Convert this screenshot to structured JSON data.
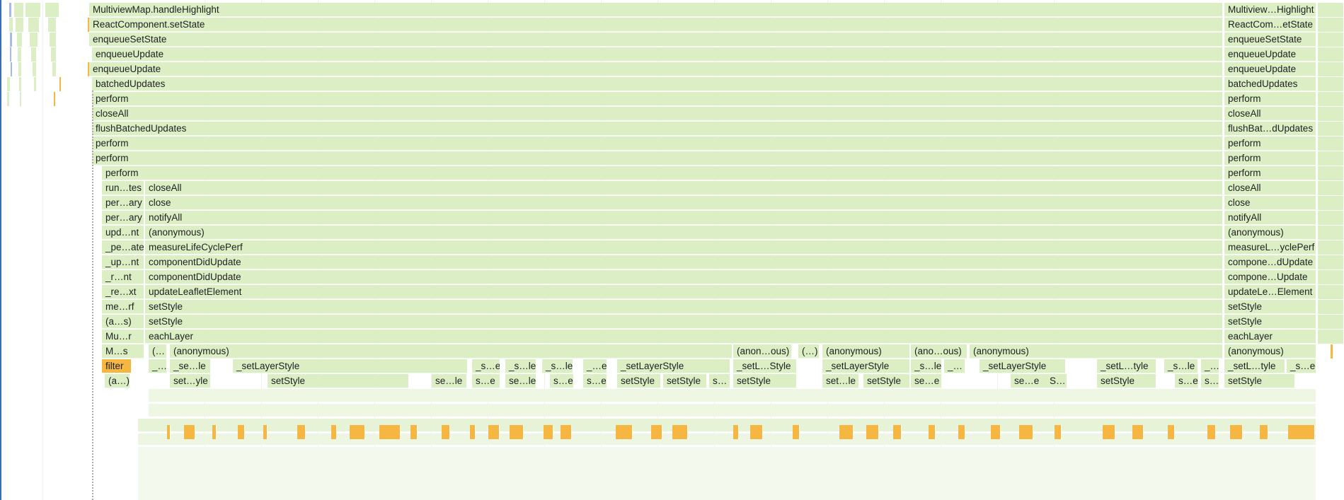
{
  "flame_chart": {
    "frames_main": [
      "MultiviewMap.handleHighlight",
      "ReactComponent.setState",
      "enqueueSetState",
      "enqueueUpdate",
      "enqueueUpdate",
      "batchedUpdates",
      "perform",
      "closeAll",
      "flushBatchedUpdates",
      "perform",
      "perform",
      "perform",
      "closeAll",
      "close",
      "notifyAll",
      "(anonymous)",
      "measureLifeCyclePerf",
      "componentDidUpdate",
      "componentDidUpdate",
      "updateLeafletElement",
      "setStyle",
      "setStyle",
      "eachLayer"
    ],
    "frames_left_column": [
      "run…tes",
      "per…ary",
      "per…ary",
      "upd…nt",
      "_pe…ate",
      "_up…nt",
      "_r…nt",
      "_re…xt",
      "me…rf",
      "(a…s)",
      "Mu…r",
      "M…s",
      "filter",
      "(a…)"
    ],
    "frames_right_column": [
      "Multiview…Highlight",
      "ReactCom…etState",
      "enqueueSetState",
      "enqueueUpdate",
      "enqueueUpdate",
      "batchedUpdates",
      "perform",
      "closeAll",
      "flushBat…dUpdates",
      "perform",
      "perform",
      "perform",
      "closeAll",
      "close",
      "notifyAll",
      "(anonymous)",
      "measureL…yclePerf",
      "compone…dUpdate",
      "compone…Update",
      "updateLe…Element",
      "setStyle",
      "setStyle",
      "eachLayer",
      "(anonymous)",
      "_setL…tyle",
      "_s…e",
      "setStyle"
    ],
    "row_anonymous": [
      "(…",
      "(anonymous)",
      "(anon…ous)",
      "(…)",
      "(anonymous)",
      "(ano…ous)",
      "(anonymous)"
    ],
    "row_setlayerstyle": [
      "_…",
      "_se…le",
      "_setLayerStyle",
      "_s…e",
      "_s…le",
      "_s…le",
      "_…e",
      "_setLayerStyle",
      "_setL…Style",
      "_setLayerStyle",
      "_s…le",
      "_…",
      "_setLayerStyle",
      "_setL…tyle",
      "_s…le",
      "_…"
    ],
    "row_setstyle": [
      "set…yle",
      "setStyle",
      "se…le",
      "s…e",
      "se…le",
      "s…e",
      "s…e",
      "setStyle",
      "setStyle",
      "s…",
      "setStyle",
      "set…le",
      "setStyle",
      "se…e",
      "se…e",
      "S…",
      "setStyle",
      "s…e",
      "s…"
    ],
    "colors": {
      "frame": "#dcefc4",
      "selected": "#f5b642",
      "highlight_blue": "#a7b7f0",
      "edge": "#3b6db3"
    }
  }
}
